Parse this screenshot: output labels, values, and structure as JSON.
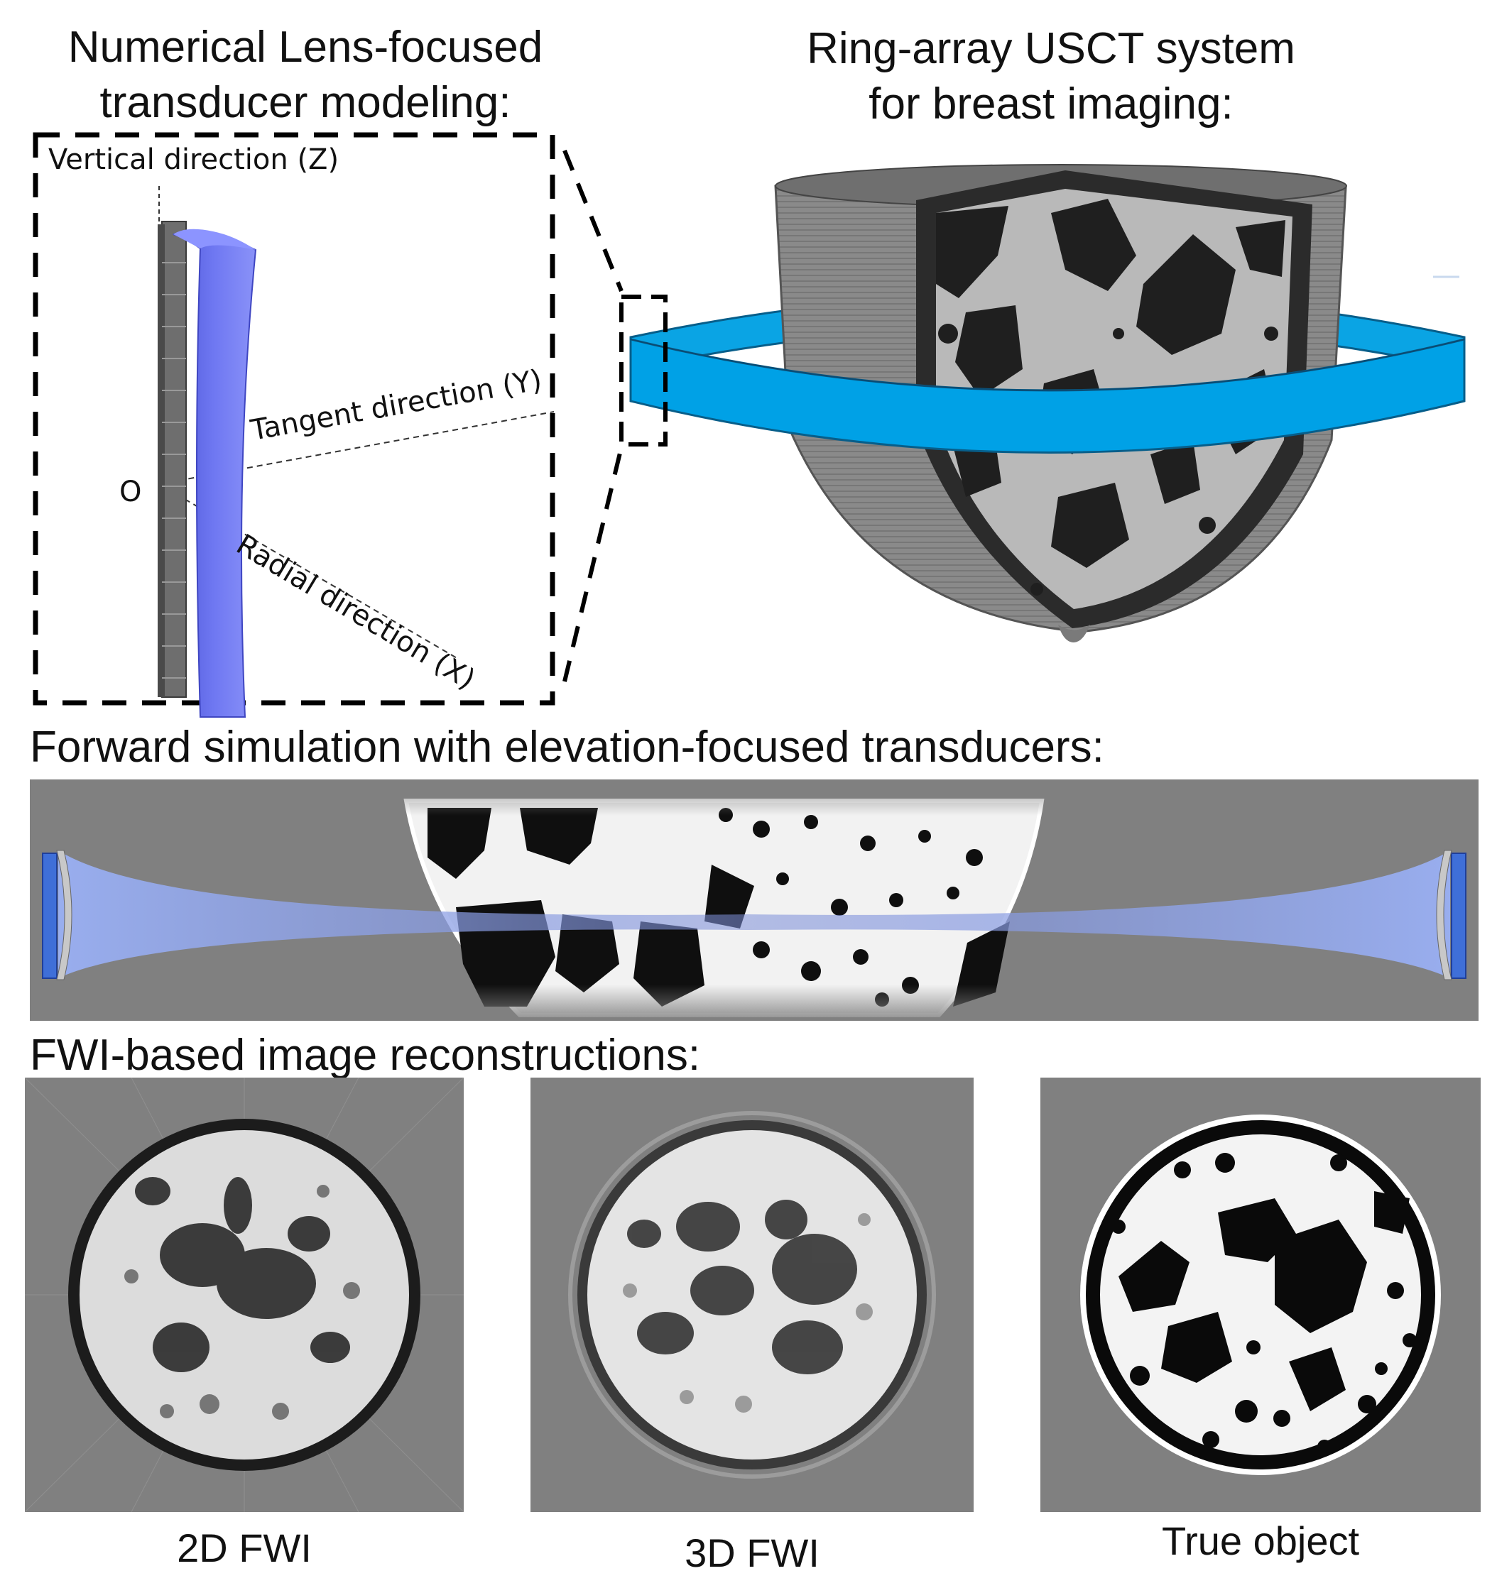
{
  "top_left_title": [
    "Numerical Lens-focused",
    "transducer modeling:"
  ],
  "top_right_title": [
    "Ring-array USCT system",
    "for breast imaging:"
  ],
  "lens_model": {
    "axis_z_label": "Vertical direction (Z)",
    "axis_y_label": "Tangent direction (Y)",
    "axis_x_label": "Radial direction (X)",
    "origin_label": "O"
  },
  "forward_simulation": {
    "heading": "Forward simulation with elevation-focused transducers:"
  },
  "reconstructions": {
    "heading": "FWI-based image reconstructions:",
    "panels": [
      {
        "caption": "2D FWI"
      },
      {
        "caption": "3D FWI"
      },
      {
        "caption": "True object"
      }
    ]
  },
  "colors": {
    "ring": "#0aa4e4",
    "lens": "#6670ee",
    "beam": "#8a9be8",
    "background_gray": "#808080"
  }
}
